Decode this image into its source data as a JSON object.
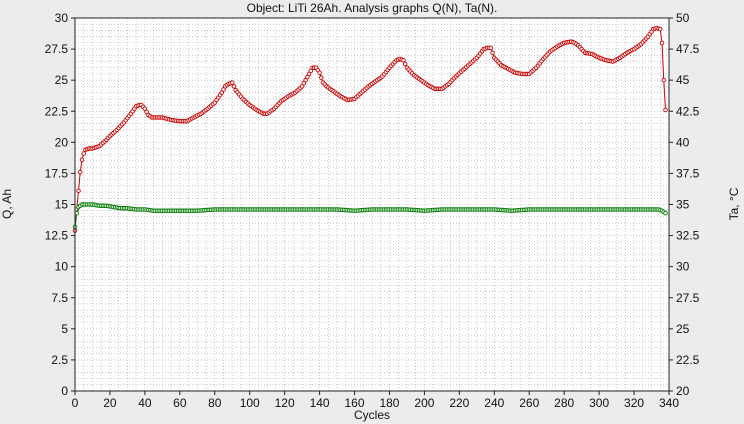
{
  "chart_data": {
    "type": "line",
    "title": "Object: LiTi 26Ah. Analysis graphs Q(N), Ta(N).",
    "xlabel": "Cycles",
    "ylabel_left": "Q, Ah",
    "ylabel_right": "Ta, °C",
    "xlim": [
      0,
      340
    ],
    "ylim_left": [
      0,
      30
    ],
    "ylim_right": [
      20,
      50
    ],
    "grid": true,
    "x_ticks": [
      0,
      20,
      40,
      60,
      80,
      100,
      120,
      140,
      160,
      180,
      200,
      220,
      240,
      260,
      280,
      300,
      320,
      340
    ],
    "y_left_ticks": [
      0,
      2.5,
      5,
      7.5,
      10,
      12.5,
      15,
      17.5,
      20,
      22.5,
      25,
      27.5,
      30
    ],
    "y_right_ticks": [
      20,
      22.5,
      25,
      27.5,
      30,
      32.5,
      35,
      37.5,
      40,
      42.5,
      45,
      47.5,
      50
    ],
    "colors": {
      "q": "#cc0000",
      "ta": "#007a00",
      "plot_bg": "#ffffff",
      "grid": "#a8a8a8",
      "frame_bg": "#ececec"
    },
    "series": [
      {
        "key": "q",
        "axis": "left",
        "x": [
          0,
          1,
          2,
          3,
          4,
          5,
          6,
          8,
          10,
          14,
          18,
          20,
          24,
          28,
          32,
          35,
          37,
          38,
          40,
          42,
          44,
          46,
          50,
          55,
          60,
          64,
          68,
          72,
          76,
          80,
          84,
          86,
          88,
          90,
          92,
          96,
          100,
          104,
          108,
          110,
          114,
          118,
          122,
          126,
          130,
          134,
          136,
          138,
          140,
          142,
          144,
          148,
          152,
          156,
          160,
          164,
          168,
          172,
          176,
          180,
          184,
          186,
          188,
          190,
          194,
          198,
          202,
          206,
          210,
          214,
          218,
          222,
          226,
          230,
          234,
          236,
          238,
          240,
          244,
          248,
          252,
          256,
          260,
          264,
          268,
          272,
          276,
          280,
          284,
          286,
          288,
          292,
          296,
          300,
          304,
          308,
          312,
          316,
          320,
          324,
          328,
          331,
          333,
          335,
          336,
          337,
          338
        ],
        "y": [
          12.9,
          14.6,
          16.1,
          17.6,
          18.6,
          19.1,
          19.4,
          19.5,
          19.5,
          19.7,
          20.2,
          20.5,
          21.0,
          21.6,
          22.3,
          22.9,
          23.0,
          23.0,
          22.7,
          22.2,
          22.0,
          22.0,
          22.0,
          21.8,
          21.7,
          21.7,
          22.0,
          22.3,
          22.7,
          23.2,
          24.0,
          24.5,
          24.7,
          24.8,
          24.2,
          23.5,
          23.0,
          22.6,
          22.3,
          22.3,
          22.7,
          23.3,
          23.7,
          24.0,
          24.5,
          25.5,
          26.0,
          26.0,
          25.6,
          24.8,
          24.5,
          24.1,
          23.7,
          23.4,
          23.5,
          24.0,
          24.5,
          24.9,
          25.3,
          26.0,
          26.6,
          26.7,
          26.6,
          26.0,
          25.4,
          25.0,
          24.6,
          24.3,
          24.3,
          24.7,
          25.3,
          25.8,
          26.3,
          26.8,
          27.5,
          27.6,
          27.6,
          26.8,
          26.2,
          25.9,
          25.6,
          25.5,
          25.5,
          26.0,
          26.7,
          27.3,
          27.7,
          28.0,
          28.1,
          28.0,
          27.8,
          27.2,
          27.1,
          26.8,
          26.6,
          26.5,
          26.8,
          27.2,
          27.5,
          27.9,
          28.5,
          29.1,
          29.2,
          29.1,
          28.0,
          25.0,
          22.6
        ]
      },
      {
        "key": "ta",
        "axis": "right",
        "x": [
          0,
          1,
          2,
          3,
          4,
          5,
          6,
          8,
          10,
          14,
          18,
          22,
          26,
          30,
          35,
          40,
          45,
          50,
          60,
          70,
          80,
          90,
          100,
          110,
          120,
          130,
          140,
          150,
          160,
          170,
          180,
          190,
          200,
          210,
          220,
          230,
          240,
          250,
          260,
          270,
          280,
          290,
          300,
          310,
          320,
          330,
          334,
          336,
          338
        ],
        "y": [
          33.2,
          34.3,
          34.8,
          34.9,
          35.0,
          35.0,
          35.0,
          35.0,
          35.0,
          34.9,
          34.9,
          34.8,
          34.7,
          34.7,
          34.6,
          34.6,
          34.5,
          34.5,
          34.5,
          34.5,
          34.6,
          34.6,
          34.6,
          34.6,
          34.6,
          34.6,
          34.6,
          34.6,
          34.5,
          34.6,
          34.6,
          34.6,
          34.5,
          34.6,
          34.6,
          34.6,
          34.6,
          34.5,
          34.6,
          34.6,
          34.6,
          34.6,
          34.6,
          34.6,
          34.6,
          34.6,
          34.6,
          34.5,
          34.3
        ]
      }
    ]
  }
}
